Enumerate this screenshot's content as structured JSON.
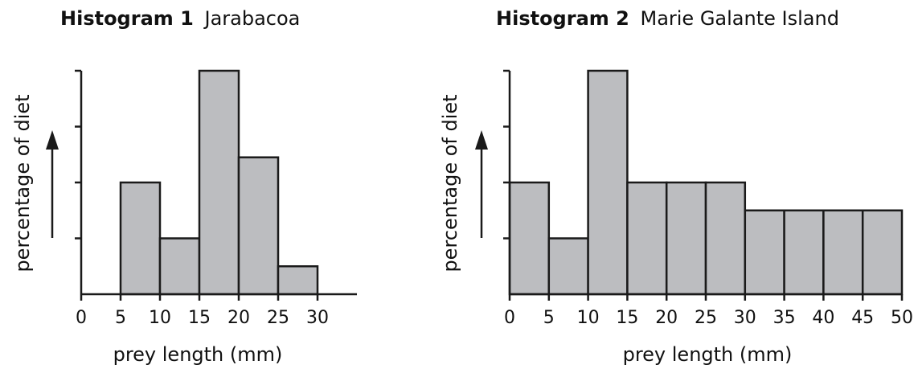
{
  "chart_data": [
    {
      "type": "bar",
      "title_bold": "Histogram 1",
      "title": "Jarabacoa",
      "xlabel": "prey length (mm)",
      "ylabel": "percentage of diet",
      "x_ticks": [
        "0",
        "5",
        "10",
        "15",
        "20",
        "25",
        "30"
      ],
      "xlim": [
        0,
        35
      ],
      "ylim": [
        0,
        4
      ],
      "bins": [
        {
          "x0": 5,
          "x1": 10,
          "value": 2
        },
        {
          "x0": 10,
          "x1": 15,
          "value": 1
        },
        {
          "x0": 15,
          "x1": 20,
          "value": 4
        },
        {
          "x0": 20,
          "x1": 25,
          "value": 2.45
        },
        {
          "x0": 25,
          "x1": 30,
          "value": 0.5
        }
      ]
    },
    {
      "type": "bar",
      "title_bold": "Histogram 2",
      "title": "Marie Galante Island",
      "xlabel": "prey length (mm)",
      "ylabel": "percentage of diet",
      "x_ticks": [
        "0",
        "5",
        "10",
        "15",
        "20",
        "25",
        "30",
        "35",
        "40",
        "45",
        "50"
      ],
      "xlim": [
        0,
        50
      ],
      "ylim": [
        0,
        4
      ],
      "bins": [
        {
          "x0": 0,
          "x1": 5,
          "value": 2
        },
        {
          "x0": 5,
          "x1": 10,
          "value": 1
        },
        {
          "x0": 10,
          "x1": 15,
          "value": 4
        },
        {
          "x0": 15,
          "x1": 20,
          "value": 2
        },
        {
          "x0": 20,
          "x1": 25,
          "value": 2
        },
        {
          "x0": 25,
          "x1": 30,
          "value": 2
        },
        {
          "x0": 30,
          "x1": 35,
          "value": 1.5
        },
        {
          "x0": 35,
          "x1": 40,
          "value": 1.5
        },
        {
          "x0": 40,
          "x1": 45,
          "value": 1.5
        },
        {
          "x0": 45,
          "x1": 50,
          "value": 1.5
        }
      ]
    }
  ]
}
